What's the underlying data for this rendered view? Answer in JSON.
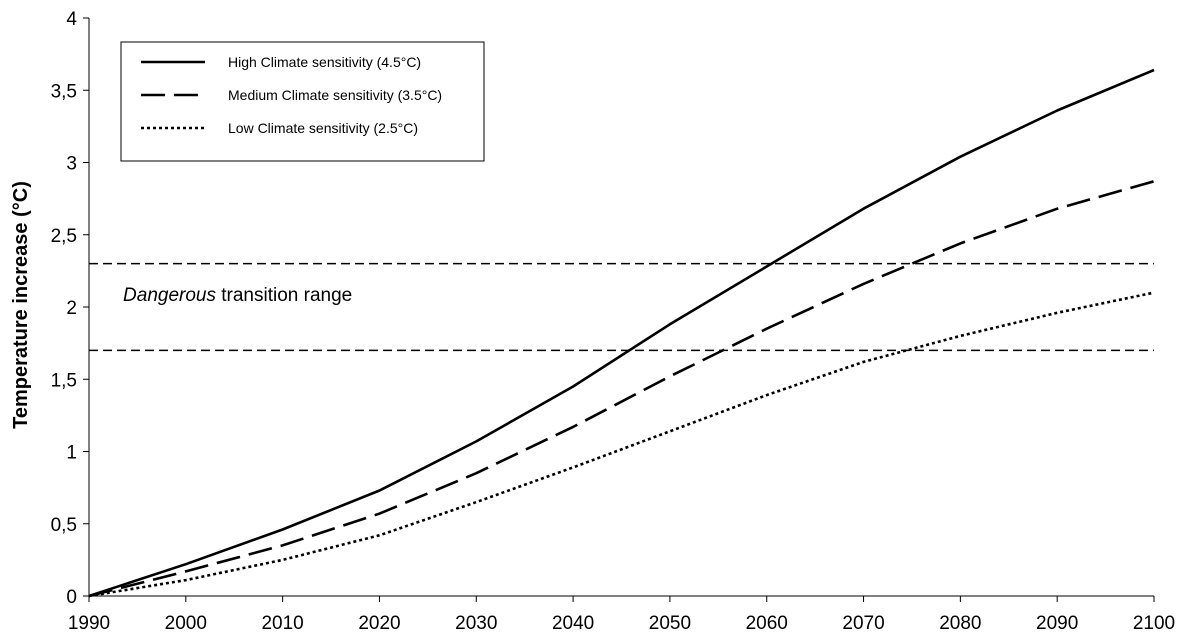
{
  "chart_data": {
    "type": "line",
    "title": "",
    "xlabel": "",
    "ylabel": "Temperature increase (°C)",
    "xlim": [
      1990,
      2100
    ],
    "ylim": [
      0,
      4
    ],
    "xticks": [
      1990,
      2000,
      2010,
      2020,
      2030,
      2040,
      2050,
      2060,
      2070,
      2080,
      2090,
      2100
    ],
    "yticks": [
      0,
      0.5,
      1,
      1.5,
      2,
      2.5,
      3,
      3.5,
      4
    ],
    "ytick_labels": [
      "0",
      "0,5",
      "1",
      "1,5",
      "2",
      "2,5",
      "3",
      "3,5",
      "4"
    ],
    "grid": false,
    "legend_position": "top-left",
    "x": [
      1990,
      2000,
      2010,
      2020,
      2030,
      2040,
      2050,
      2060,
      2070,
      2080,
      2090,
      2100
    ],
    "series": [
      {
        "name": "High Climate sensitivity (4.5°C)",
        "style": "solid",
        "values": [
          0,
          0.22,
          0.46,
          0.73,
          1.07,
          1.45,
          1.88,
          2.28,
          2.68,
          3.04,
          3.36,
          3.64
        ]
      },
      {
        "name": "Medium Climate sensitivity (3.5°C)",
        "style": "dashed",
        "values": [
          0,
          0.17,
          0.35,
          0.57,
          0.85,
          1.17,
          1.52,
          1.85,
          2.16,
          2.44,
          2.68,
          2.87
        ]
      },
      {
        "name": "Low Climate sensitivity (2.5°C)",
        "style": "dotted",
        "values": [
          0,
          0.11,
          0.25,
          0.42,
          0.65,
          0.89,
          1.14,
          1.39,
          1.62,
          1.8,
          1.96,
          2.1
        ]
      }
    ],
    "reference_lines": [
      {
        "y": 2.3,
        "style": "dashed"
      },
      {
        "y": 1.7,
        "style": "dashed"
      }
    ],
    "annotation": {
      "italic_part": "Dangerous",
      "rest": " transition range",
      "x": 1993,
      "y": 2.0
    }
  }
}
